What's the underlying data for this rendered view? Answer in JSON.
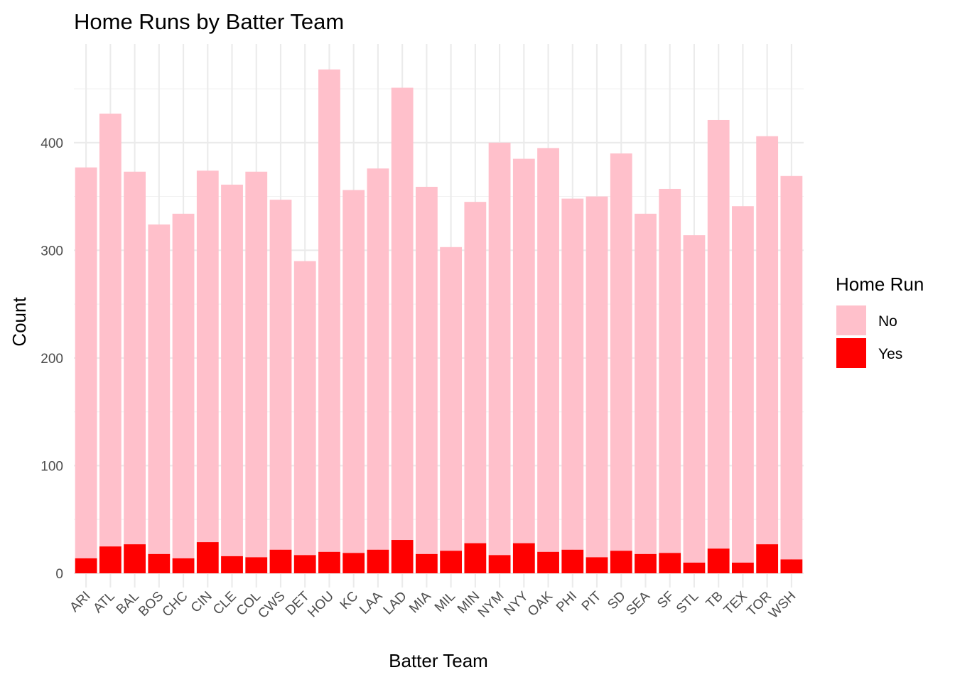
{
  "chart_data": {
    "type": "bar",
    "stacked": true,
    "title": "Home Runs by Batter Team",
    "xlabel": "Batter Team",
    "ylabel": "Count",
    "ylim": [
      0,
      480
    ],
    "yticks": [
      0,
      100,
      200,
      300,
      400
    ],
    "grid": true,
    "legend": {
      "title": "Home Run",
      "position": "right"
    },
    "categories": [
      "ARI",
      "ATL",
      "BAL",
      "BOS",
      "CHC",
      "CIN",
      "CLE",
      "COL",
      "CWS",
      "DET",
      "HOU",
      "KC",
      "LAA",
      "LAD",
      "MIA",
      "MIL",
      "MIN",
      "NYM",
      "NYY",
      "OAK",
      "PHI",
      "PIT",
      "SD",
      "SEA",
      "SF",
      "STL",
      "TB",
      "TEX",
      "TOR",
      "WSH"
    ],
    "series": [
      {
        "name": "No",
        "color": "#ffc0cb",
        "values": [
          363,
          402,
          346,
          306,
          320,
          345,
          345,
          358,
          325,
          273,
          448,
          337,
          354,
          420,
          341,
          282,
          317,
          383,
          357,
          375,
          326,
          335,
          369,
          316,
          338,
          304,
          398,
          331,
          379,
          356
        ]
      },
      {
        "name": "Yes",
        "color": "#ff0000",
        "values": [
          14,
          25,
          27,
          18,
          14,
          29,
          16,
          15,
          22,
          17,
          20,
          19,
          22,
          31,
          18,
          21,
          28,
          17,
          28,
          20,
          22,
          15,
          21,
          18,
          19,
          10,
          23,
          10,
          27,
          13
        ]
      }
    ]
  }
}
